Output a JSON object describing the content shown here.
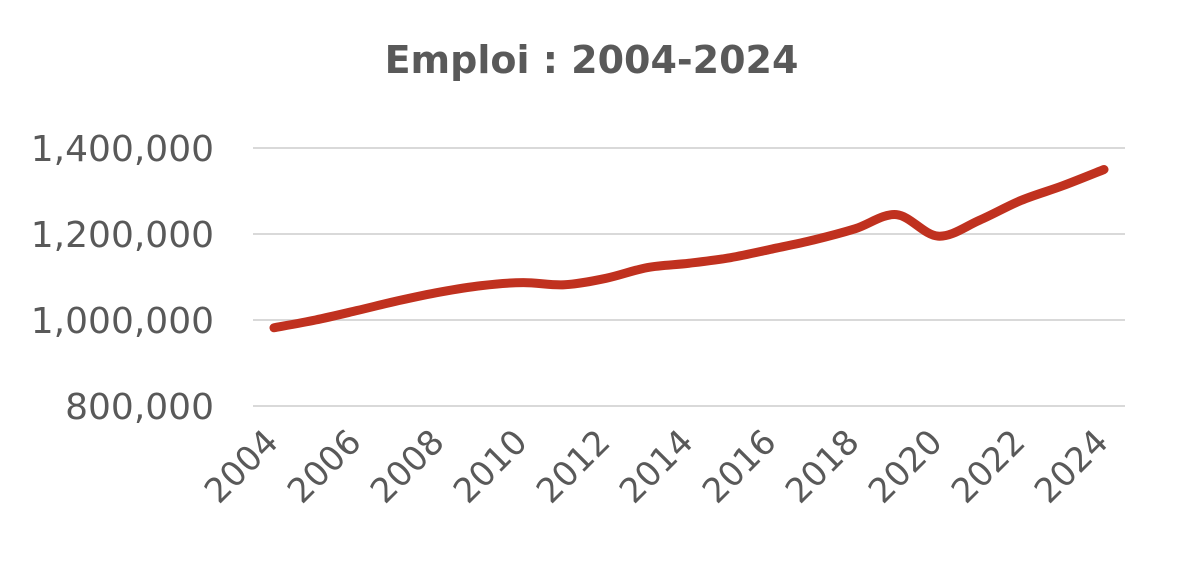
{
  "chart_data": {
    "type": "line",
    "title": "Emploi : 2004-2024",
    "xlabel": "",
    "ylabel": "",
    "x": [
      2004,
      2005,
      2006,
      2007,
      2008,
      2009,
      2010,
      2011,
      2012,
      2013,
      2014,
      2015,
      2016,
      2017,
      2018,
      2019,
      2020,
      2021,
      2022,
      2023,
      2024
    ],
    "x_tick_labels": [
      "2004",
      "2006",
      "2008",
      "2010",
      "2012",
      "2014",
      "2016",
      "2018",
      "2020",
      "2022",
      "2024"
    ],
    "y_ticks": [
      800000,
      1000000,
      1200000,
      1400000
    ],
    "y_tick_labels": [
      "800,000",
      "1,000,000",
      "1,200,000",
      "1,400,000"
    ],
    "ylim": [
      800000,
      1400000
    ],
    "grid": true,
    "series": [
      {
        "values": [
          982000,
          1000000,
          1022000,
          1045000,
          1065000,
          1080000,
          1087000,
          1082000,
          1097000,
          1122000,
          1132000,
          1145000,
          1165000,
          1186000,
          1212000,
          1245000,
          1195000,
          1232000,
          1278000,
          1312000,
          1350000
        ],
        "color": "#c0311f"
      }
    ]
  }
}
